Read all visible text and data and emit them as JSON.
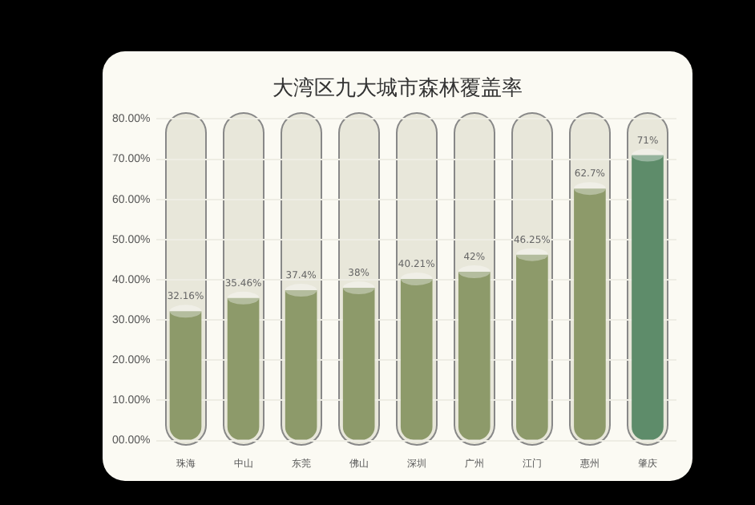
{
  "chart_data": {
    "type": "bar",
    "title": "大湾区九大城市森林覆盖率",
    "categories": [
      "珠海",
      "中山",
      "东莞",
      "佛山",
      "深圳",
      "广州",
      "江门",
      "惠州",
      "肇庆"
    ],
    "values": [
      32.16,
      35.46,
      37.4,
      38,
      40.21,
      42,
      46.25,
      62.7,
      71
    ],
    "colors": [
      "#8d9a6a",
      "#8d9a6a",
      "#8d9a6a",
      "#8d9a6a",
      "#8d9a6a",
      "#8d9a6a",
      "#8d9a6a",
      "#8d9a6a",
      "#5e8c6a"
    ],
    "value_labels": [
      "32.16%",
      "35.46%",
      "37.4%",
      "38%",
      "40.21%",
      "42%",
      "46.25%",
      "62.7%",
      "71%"
    ],
    "ylim": [
      0,
      80
    ],
    "yticks": [
      {
        "value": 0,
        "label": "00.00%"
      },
      {
        "value": 10,
        "label": "10.00%"
      },
      {
        "value": 20,
        "label": "20.00%"
      },
      {
        "value": 30,
        "label": "30.00%"
      },
      {
        "value": 40,
        "label": "40.00%"
      },
      {
        "value": 50,
        "label": "50.00%"
      },
      {
        "value": 60,
        "label": "60.00%"
      },
      {
        "value": 70,
        "label": "70.00%"
      },
      {
        "value": 80,
        "label": "80.00%"
      }
    ],
    "grid": "y"
  }
}
